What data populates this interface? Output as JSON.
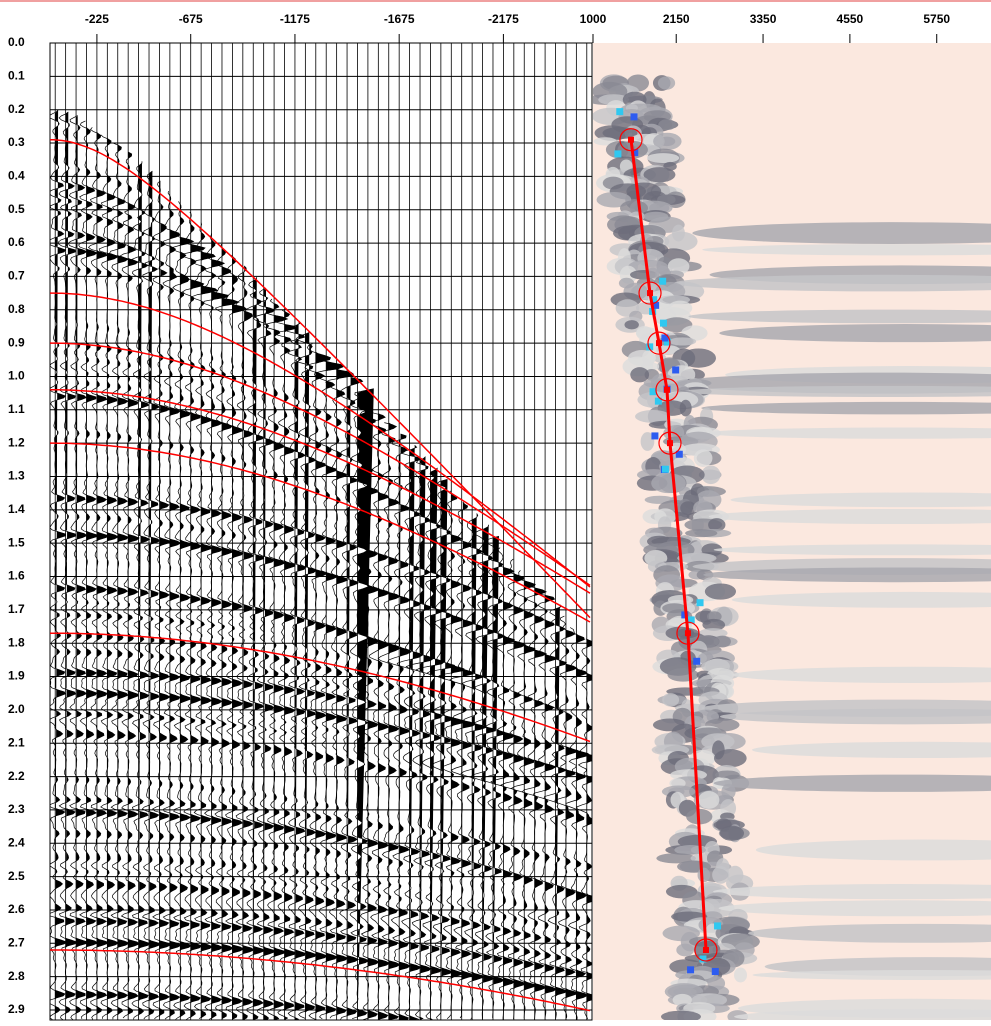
{
  "chart_data": [
    {
      "type": "seismic-gather",
      "xlim": [
        0,
        -2600
      ],
      "xticks": [
        -225,
        -675,
        -1175,
        -1675,
        -2175
      ],
      "ylim": [
        0,
        2.93
      ],
      "yticks": [
        {
          "value": 0,
          "label": "0.0"
        },
        0.1,
        0.2,
        0.3,
        0.4,
        0.5,
        0.6,
        0.7,
        0.8,
        0.9,
        {
          "value": 1,
          "label": "1.0"
        },
        1.1,
        1.2,
        1.3,
        1.4,
        1.5,
        1.6,
        1.7,
        1.8,
        1.9,
        {
          "value": 2,
          "label": "2.0"
        },
        2.1,
        2.2,
        2.3,
        2.4,
        2.5,
        2.6,
        2.7,
        2.8,
        2.9
      ],
      "grid": true
    },
    {
      "type": "semblance",
      "xlim": [
        1000,
        6500
      ],
      "xticks": [
        1000,
        2150,
        3350,
        4550,
        5750
      ],
      "ylim": [
        0,
        2.93
      ],
      "x": [
        1525,
        1788,
        1912,
        2022,
        2064,
        2312,
        2561
      ],
      "y": [
        0.29,
        0.75,
        0.9,
        1.04,
        1.2,
        1.77,
        2.72
      ],
      "color": "#ff0000"
    }
  ]
}
